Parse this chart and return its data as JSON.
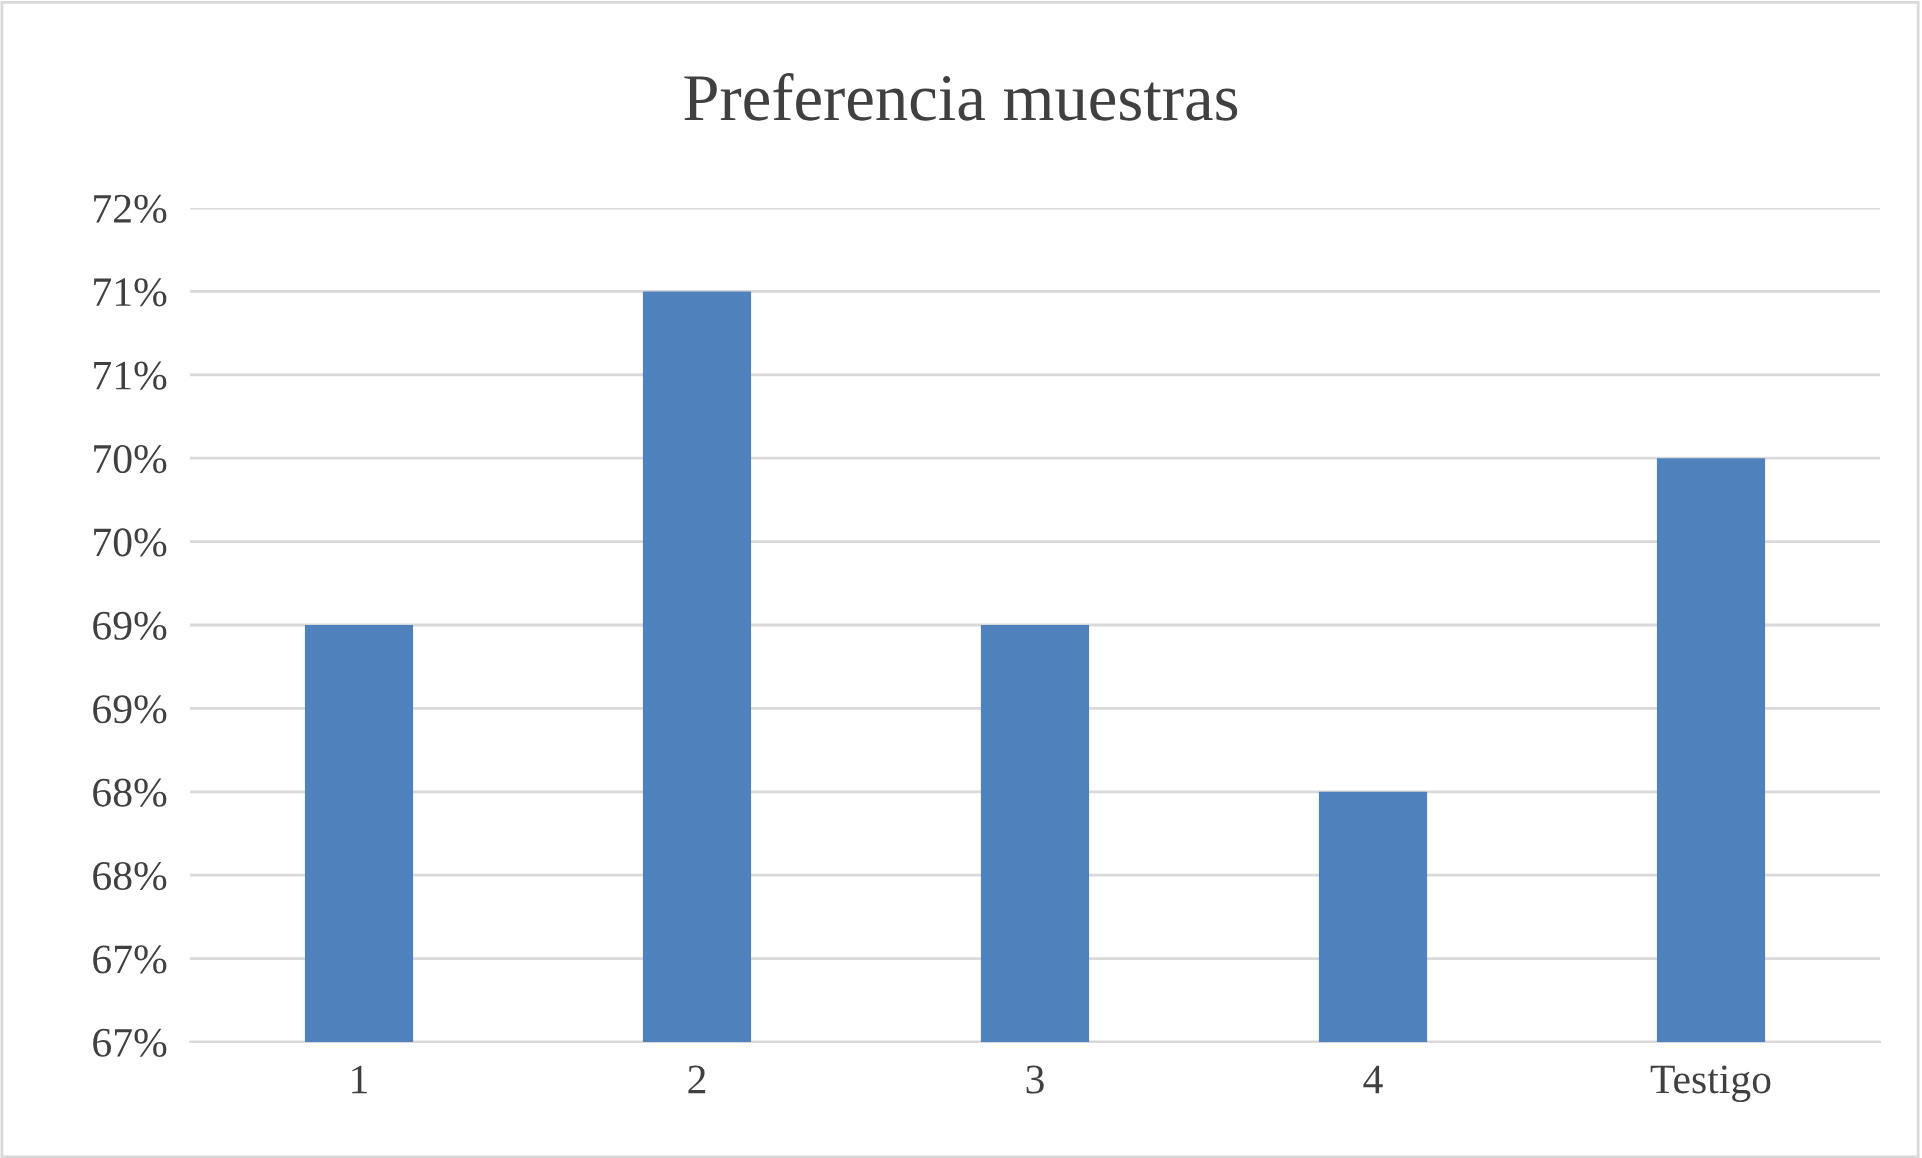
{
  "chart_data": {
    "type": "bar",
    "title": "Preferencia muestras",
    "categories": [
      "1",
      "2",
      "3",
      "4",
      "Testigo"
    ],
    "values": [
      69,
      71,
      69,
      68,
      70
    ],
    "color": "#4f81bd",
    "ylim": [
      66.5,
      71.5
    ],
    "yticks": [
      {
        "value": 66.5,
        "label": "67%"
      },
      {
        "value": 67,
        "label": "67%"
      },
      {
        "value": 67.5,
        "label": "68%"
      },
      {
        "value": 68,
        "label": "68%"
      },
      {
        "value": 68.5,
        "label": "69%"
      },
      {
        "value": 69,
        "label": "69%"
      },
      {
        "value": 69.5,
        "label": "70%"
      },
      {
        "value": 70,
        "label": "70%"
      },
      {
        "value": 70.5,
        "label": "71%"
      },
      {
        "value": 71,
        "label": "71%"
      },
      {
        "value": 71.5,
        "label": "72%"
      }
    ],
    "grid": "y"
  }
}
